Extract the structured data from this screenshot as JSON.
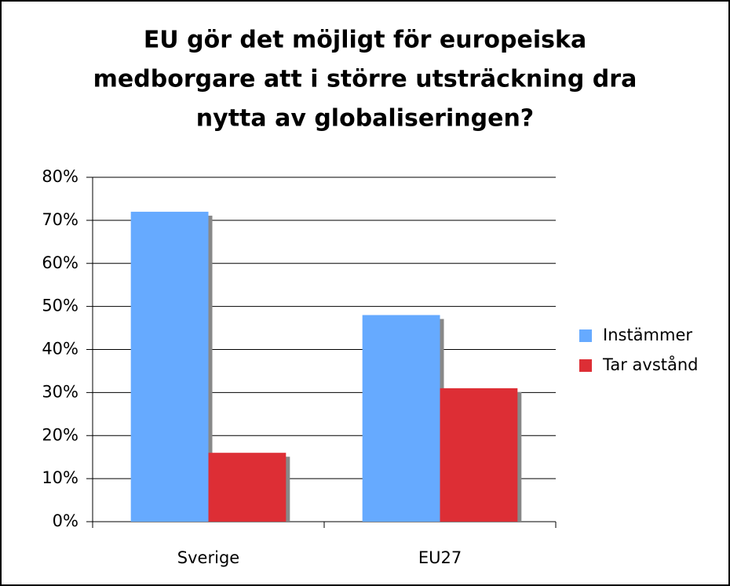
{
  "chart_data": {
    "type": "bar",
    "title": [
      "EU gör det möjligt för europeiska",
      "medborgare att i större utsträckning dra",
      "nytta av globaliseringen?"
    ],
    "categories": [
      "Sverige",
      "EU27"
    ],
    "series": [
      {
        "name": "Instämmer",
        "color": "#66aaff",
        "values": [
          72,
          48
        ]
      },
      {
        "name": "Tar avstånd",
        "color": "#dd2e35",
        "values": [
          16,
          31
        ]
      }
    ],
    "ylim": [
      0,
      80
    ],
    "yticks": [
      {
        "value": 0,
        "label": "0%"
      },
      {
        "value": 10,
        "label": "10%"
      },
      {
        "value": 20,
        "label": "20%"
      },
      {
        "value": 30,
        "label": "30%"
      },
      {
        "value": 40,
        "label": "40%"
      },
      {
        "value": 50,
        "label": "50%"
      },
      {
        "value": 60,
        "label": "60%"
      },
      {
        "value": 70,
        "label": "70%"
      },
      {
        "value": 80,
        "label": "80%"
      }
    ],
    "grid": true,
    "legend": "right"
  }
}
